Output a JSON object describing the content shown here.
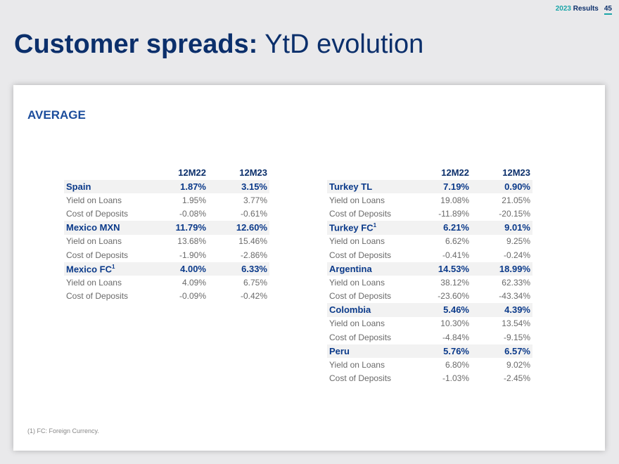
{
  "header": {
    "year": "2023",
    "results": "Results",
    "page": "45"
  },
  "title": {
    "bold": "Customer spreads:",
    "rest": "YtD evolution"
  },
  "section": "AVERAGE",
  "columns": [
    "12M22",
    "12M23"
  ],
  "left": [
    {
      "name": "Spain",
      "sup": "",
      "v": [
        "1.87%",
        "3.15%"
      ],
      "rows": [
        {
          "label": "Yield on Loans",
          "v": [
            "1.95%",
            "3.77%"
          ]
        },
        {
          "label": "Cost of Deposits",
          "v": [
            "-0.08%",
            "-0.61%"
          ]
        }
      ]
    },
    {
      "name": "Mexico MXN",
      "sup": "",
      "v": [
        "11.79%",
        "12.60%"
      ],
      "rows": [
        {
          "label": "Yield on Loans",
          "v": [
            "13.68%",
            "15.46%"
          ]
        },
        {
          "label": "Cost of Deposits",
          "v": [
            "-1.90%",
            "-2.86%"
          ]
        }
      ]
    },
    {
      "name": "Mexico FC",
      "sup": "1",
      "v": [
        "4.00%",
        "6.33%"
      ],
      "rows": [
        {
          "label": "Yield on Loans",
          "v": [
            "4.09%",
            "6.75%"
          ]
        },
        {
          "label": "Cost of Deposits",
          "v": [
            "-0.09%",
            "-0.42%"
          ]
        }
      ]
    }
  ],
  "right": [
    {
      "name": "Turkey TL",
      "sup": "",
      "v": [
        "7.19%",
        "0.90%"
      ],
      "rows": [
        {
          "label": "Yield on Loans",
          "v": [
            "19.08%",
            "21.05%"
          ]
        },
        {
          "label": "Cost of Deposits",
          "v": [
            "-11.89%",
            "-20.15%"
          ]
        }
      ]
    },
    {
      "name": "Turkey FC",
      "sup": "1",
      "v": [
        "6.21%",
        "9.01%"
      ],
      "rows": [
        {
          "label": "Yield on Loans",
          "v": [
            "6.62%",
            "9.25%"
          ]
        },
        {
          "label": "Cost of Deposits",
          "v": [
            "-0.41%",
            "-0.24%"
          ]
        }
      ]
    },
    {
      "name": "Argentina",
      "sup": "",
      "v": [
        "14.53%",
        "18.99%"
      ],
      "rows": [
        {
          "label": "Yield on Loans",
          "v": [
            "38.12%",
            "62.33%"
          ]
        },
        {
          "label": "Cost of Deposits",
          "v": [
            "-23.60%",
            "-43.34%"
          ]
        }
      ]
    },
    {
      "name": "Colombia",
      "sup": "",
      "v": [
        "5.46%",
        "4.39%"
      ],
      "rows": [
        {
          "label": "Yield on Loans",
          "v": [
            "10.30%",
            "13.54%"
          ]
        },
        {
          "label": "Cost of Deposits",
          "v": [
            "-4.84%",
            "-9.15%"
          ]
        }
      ]
    },
    {
      "name": "Peru",
      "sup": "",
      "v": [
        "5.76%",
        "6.57%"
      ],
      "rows": [
        {
          "label": "Yield on Loans",
          "v": [
            "6.80%",
            "9.02%"
          ]
        },
        {
          "label": "Cost of Deposits",
          "v": [
            "-1.03%",
            "-2.45%"
          ]
        }
      ]
    }
  ],
  "footnote": "(1) FC: Foreign Currency."
}
